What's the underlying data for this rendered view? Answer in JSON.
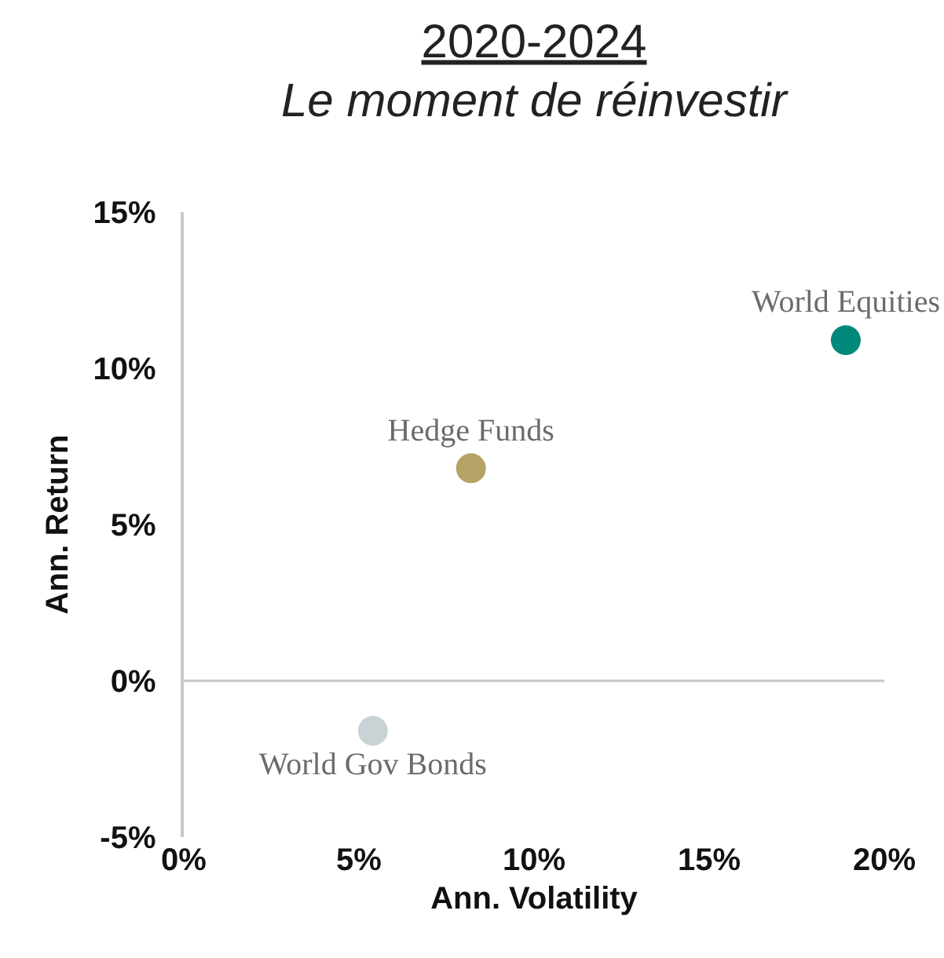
{
  "chart_data": {
    "type": "scatter",
    "title": "2020-2024",
    "subtitle": "Le moment de réinvestir",
    "xlabel": "Ann. Volatility",
    "ylabel": "Ann. Return",
    "series": [
      {
        "name": "World Equities",
        "color": "#00897b",
        "x": [
          18.9
        ],
        "values": [
          10.9
        ]
      },
      {
        "name": "Hedge Funds",
        "color": "#b5a265",
        "x": [
          8.2
        ],
        "values": [
          6.8
        ]
      },
      {
        "name": "World Gov Bonds",
        "color": "#c9d3d6",
        "x": [
          5.4
        ],
        "values": [
          -1.6
        ]
      }
    ],
    "xlim": [
      0,
      20
    ],
    "ylim": [
      -5,
      15
    ],
    "xticks": [
      {
        "value": 0,
        "label": "0%"
      },
      {
        "value": 5,
        "label": "5%"
      },
      {
        "value": 10,
        "label": "10%"
      },
      {
        "value": 15,
        "label": "15%"
      },
      {
        "value": 20,
        "label": "20%"
      }
    ],
    "yticks": [
      {
        "value": -5,
        "label": "-5%"
      },
      {
        "value": 0,
        "label": "0%"
      },
      {
        "value": 5,
        "label": "5%"
      },
      {
        "value": 10,
        "label": "10%"
      },
      {
        "value": 15,
        "label": "15%"
      }
    ],
    "ref_lines": [
      {
        "axis": "y",
        "value": 0,
        "color": "#c8c8c8"
      }
    ],
    "grid": false,
    "legend": false,
    "marker": "circle"
  }
}
